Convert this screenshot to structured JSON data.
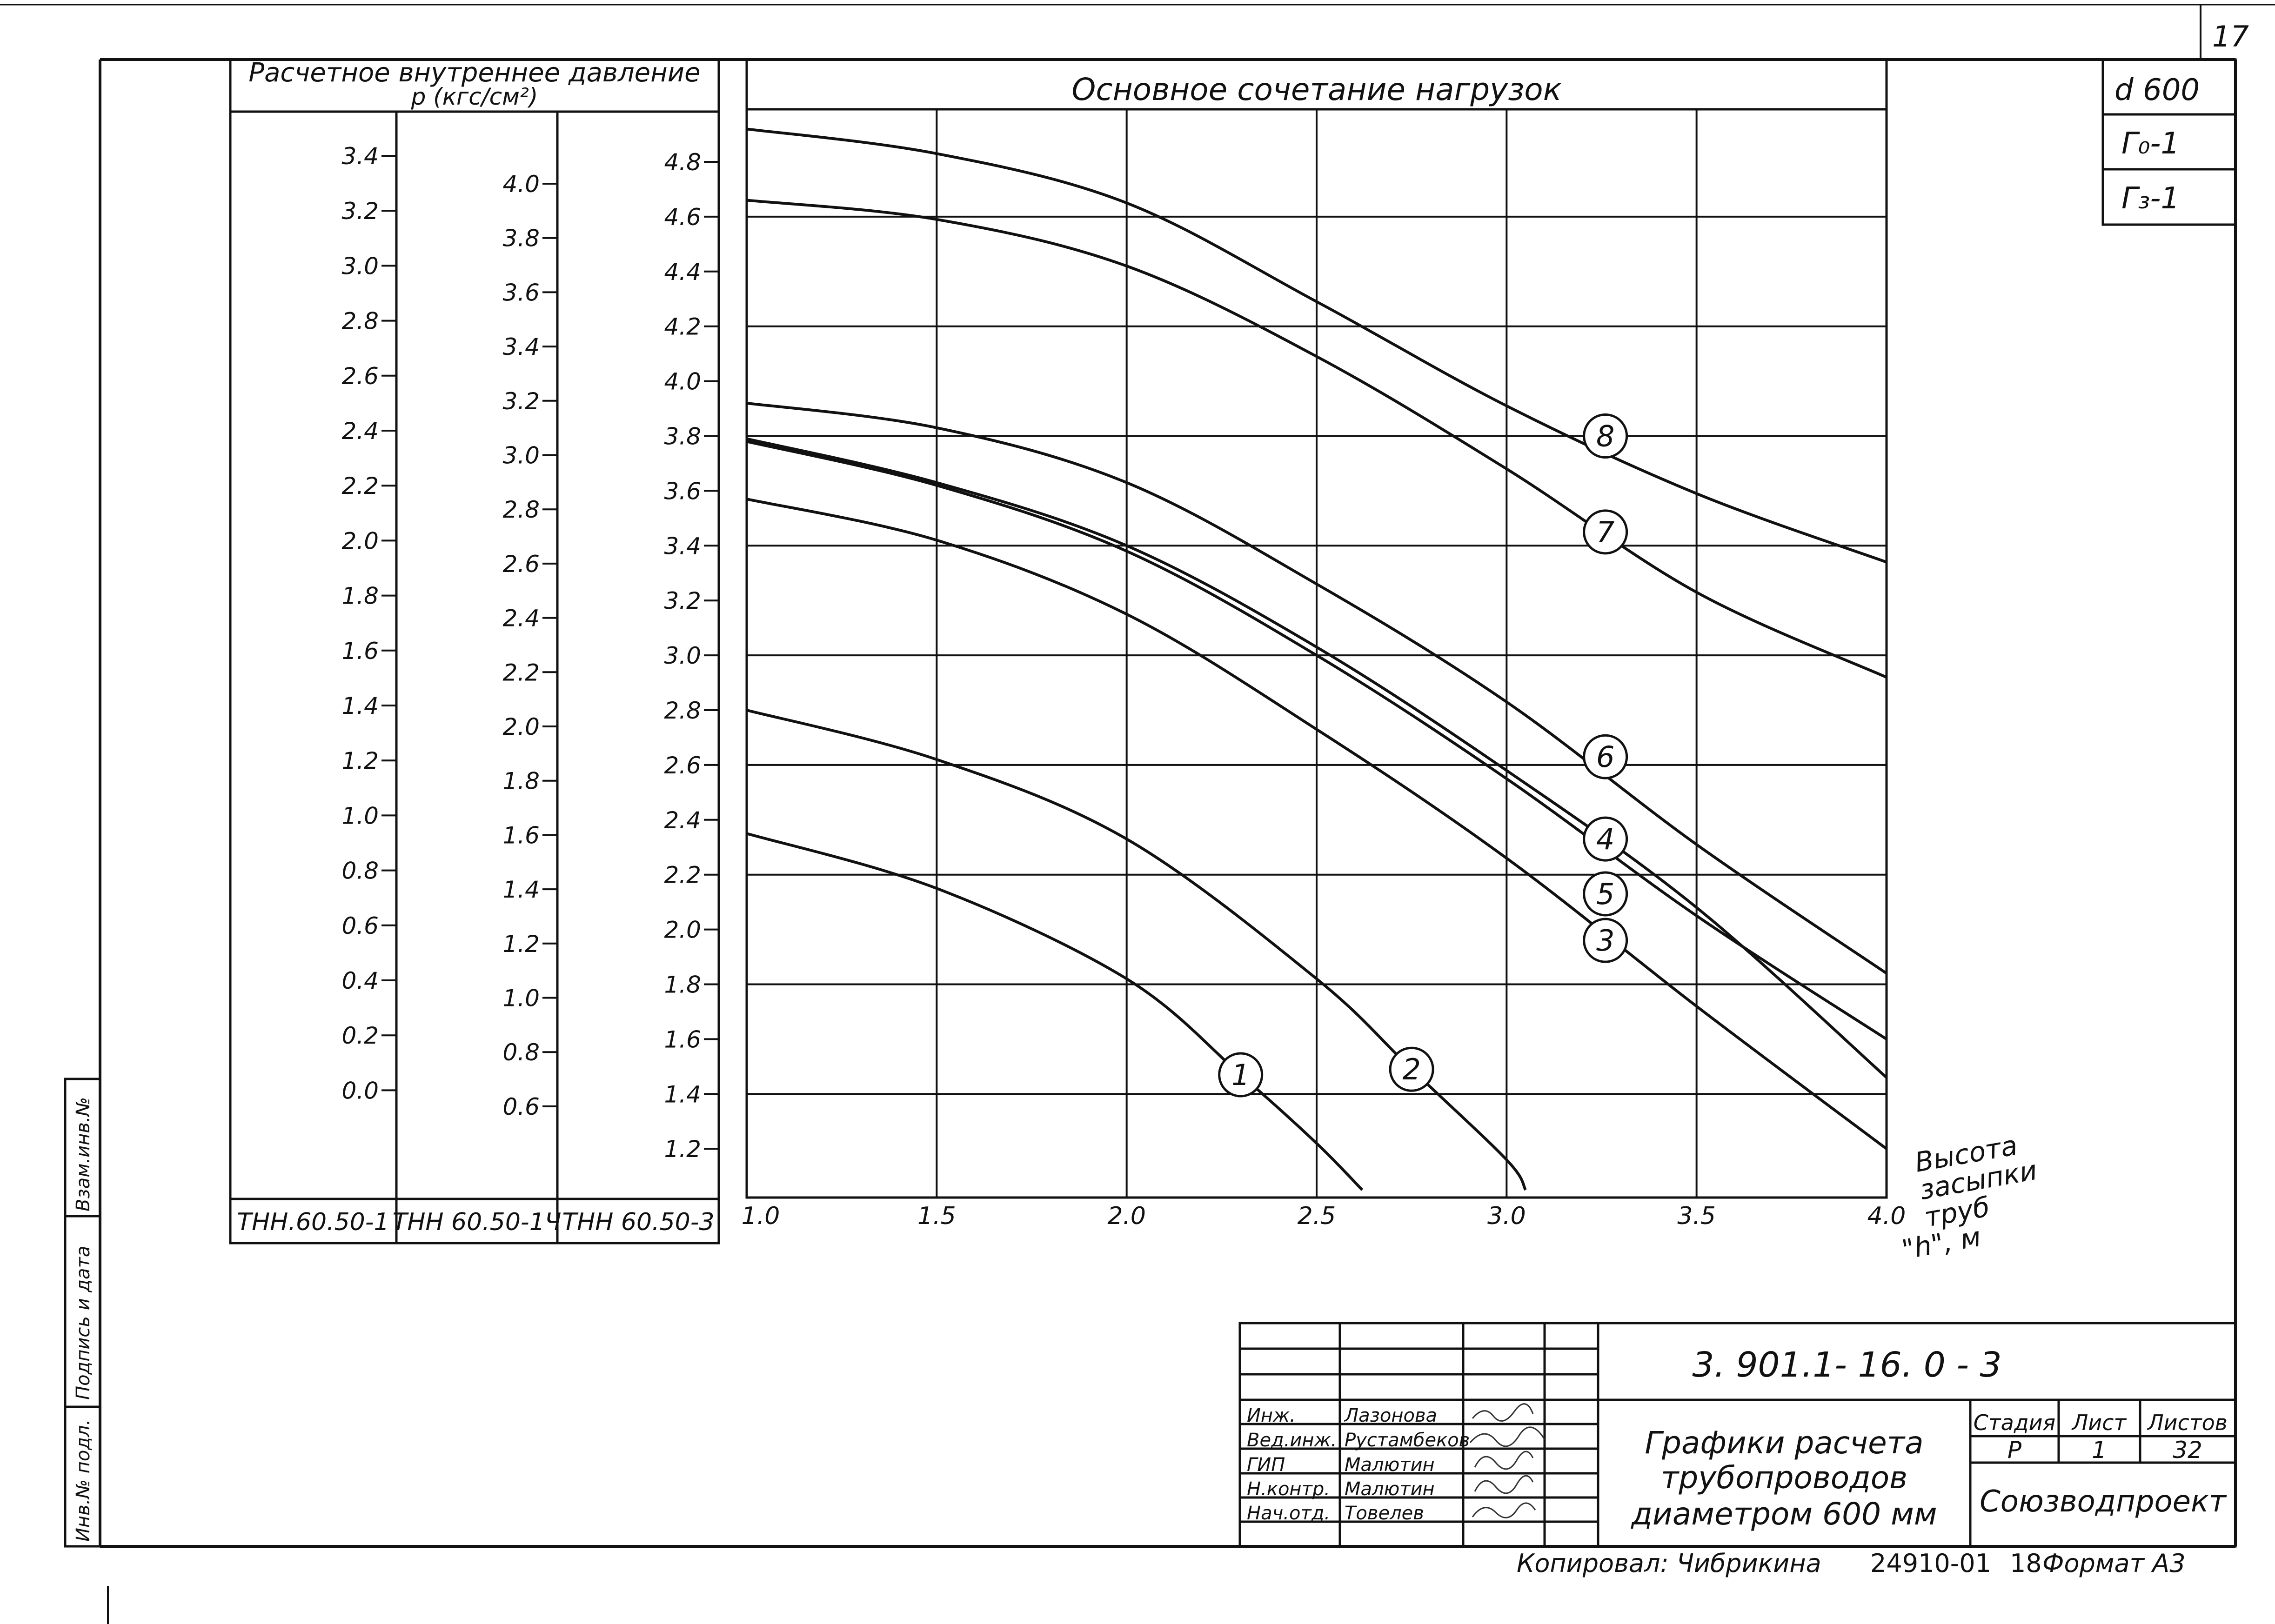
{
  "sheet": {
    "page_number": "17",
    "tags": [
      "d 600",
      "Г₀-1",
      "Г₃-1"
    ]
  },
  "scales": {
    "header_line1": "Расчетное внутреннее давление",
    "header_line2": "р (кгс/см²)",
    "columns": [
      {
        "footer": "ТНН.60.50-1",
        "ticks": [
          "3.4",
          "3.2",
          "3.0",
          "2.8",
          "2.6",
          "2.4",
          "2.2",
          "2.0",
          "1.8",
          "1.6",
          "1.4",
          "1.2",
          "1.0",
          "0.8",
          "0.6",
          "0.4",
          "0.2",
          "0.0"
        ],
        "values": [
          3.4,
          3.2,
          3.0,
          2.8,
          2.6,
          2.4,
          2.2,
          2.0,
          1.8,
          1.6,
          1.4,
          1.2,
          1.0,
          0.8,
          0.6,
          0.4,
          0.2,
          0.0
        ]
      },
      {
        "footer": "ТНН 60.50-1Ч",
        "ticks": [
          "4.0",
          "3.8",
          "3.6",
          "3.4",
          "3.2",
          "3.0",
          "2.8",
          "2.6",
          "2.4",
          "2.2",
          "2.0",
          "1.8",
          "1.6",
          "1.4",
          "1.2",
          "1.0",
          "0.8",
          "0.6"
        ],
        "values": [
          4.0,
          3.8,
          3.6,
          3.4,
          3.2,
          3.0,
          2.8,
          2.6,
          2.4,
          2.2,
          2.0,
          1.8,
          1.6,
          1.4,
          1.2,
          1.0,
          0.8,
          0.6
        ]
      },
      {
        "footer": "ТНН 60.50-3",
        "ticks": [
          "4.8",
          "4.6",
          "4.4",
          "4.2",
          "4.0",
          "3.8",
          "3.6",
          "3.4",
          "3.2",
          "3.0",
          "2.8",
          "2.6",
          "2.4",
          "2.2",
          "2.0",
          "1.8",
          "1.6",
          "1.4",
          "1.2"
        ],
        "values": [
          4.8,
          4.6,
          4.4,
          4.2,
          4.0,
          3.8,
          3.6,
          3.4,
          3.2,
          3.0,
          2.8,
          2.6,
          2.4,
          2.2,
          2.0,
          1.8,
          1.6,
          1.4,
          1.2
        ]
      }
    ]
  },
  "chart_data": {
    "type": "line",
    "title": "Основное сочетание нагрузок",
    "xlabel": "Высота засыпки труб \"h\", м",
    "ylabel": "",
    "x_ticks": [
      "1.0",
      "1.5",
      "2.0",
      "2.5",
      "3.0",
      "3.5",
      "4.0"
    ],
    "xlim": [
      1.0,
      4.0
    ],
    "ylim": [
      1.1,
      4.95
    ],
    "y_reference_scale": "ТНН 60.50-3",
    "grid": true,
    "legend": "numbered circle labels on curves",
    "series": [
      {
        "name": "1",
        "x": [
          1.0,
          1.5,
          2.0,
          2.3,
          2.5,
          2.62
        ],
        "y": [
          2.35,
          2.15,
          1.82,
          1.47,
          1.22,
          1.05
        ]
      },
      {
        "name": "2",
        "x": [
          1.0,
          1.5,
          2.0,
          2.5,
          2.75,
          3.0,
          3.05
        ],
        "y": [
          2.8,
          2.62,
          2.33,
          1.82,
          1.49,
          1.16,
          1.05
        ]
      },
      {
        "name": "3",
        "x": [
          1.0,
          1.5,
          2.0,
          2.5,
          3.0,
          3.5,
          4.0
        ],
        "y": [
          3.57,
          3.42,
          3.15,
          2.73,
          2.26,
          1.72,
          1.2
        ]
      },
      {
        "name": "4",
        "x": [
          1.0,
          1.5,
          2.0,
          2.5,
          3.0,
          3.5,
          4.0
        ],
        "y": [
          3.78,
          3.62,
          3.38,
          3.0,
          2.55,
          2.05,
          1.6
        ]
      },
      {
        "name": "5",
        "x": [
          1.0,
          1.5,
          2.0,
          2.5,
          3.0,
          3.5,
          4.0
        ],
        "y": [
          3.79,
          3.63,
          3.4,
          3.03,
          2.58,
          2.08,
          1.46
        ]
      },
      {
        "name": "6",
        "x": [
          1.0,
          1.5,
          2.0,
          2.5,
          3.0,
          3.5,
          4.0
        ],
        "y": [
          3.92,
          3.83,
          3.63,
          3.26,
          2.83,
          2.31,
          1.84
        ]
      },
      {
        "name": "7",
        "x": [
          1.0,
          1.5,
          2.0,
          2.5,
          3.0,
          3.5,
          4.0
        ],
        "y": [
          4.66,
          4.59,
          4.42,
          4.09,
          3.68,
          3.23,
          2.92
        ]
      },
      {
        "name": "8",
        "x": [
          1.0,
          1.5,
          2.0,
          2.5,
          3.0,
          3.5,
          4.0
        ],
        "y": [
          4.92,
          4.83,
          4.65,
          4.29,
          3.91,
          3.59,
          3.34
        ]
      }
    ],
    "labels": [
      {
        "text": "1",
        "x": 2.3,
        "y": 1.47
      },
      {
        "text": "2",
        "x": 2.75,
        "y": 1.49
      },
      {
        "text": "3",
        "x": 3.26,
        "y": 1.96
      },
      {
        "text": "4",
        "x": 3.26,
        "y": 2.33
      },
      {
        "text": "5",
        "x": 3.26,
        "y": 2.13
      },
      {
        "text": "6",
        "x": 3.26,
        "y": 2.63
      },
      {
        "text": "7",
        "x": 3.26,
        "y": 3.45
      },
      {
        "text": "8",
        "x": 3.26,
        "y": 3.8
      }
    ]
  },
  "title_block": {
    "doc_code": "3. 901.1- 16. 0 - 3",
    "doc_title_lines": [
      "Графики расчета",
      "трубопроводов",
      "диаметром 600 мм"
    ],
    "stage_header": "Стадия",
    "sheet_header": "Лист",
    "sheets_header": "Листов",
    "stage": "Р",
    "sheet": "1",
    "sheets": "32",
    "organization": "Союзводпроект",
    "roles": [
      {
        "role": "Инж.",
        "name": "Лазонова"
      },
      {
        "role": "Вед.инж.",
        "name": "Рустамбеков"
      },
      {
        "role": "ГИП",
        "name": "Малютин"
      },
      {
        "role": "Н.контр.",
        "name": "Малютин"
      },
      {
        "role": "Нач.отд.",
        "name": "Товелев"
      }
    ]
  },
  "side_stamp": {
    "labels": [
      "Инв.№ подл.",
      "Подпись и дата",
      "Взам.инв.№"
    ]
  },
  "footer": {
    "copied_by": "Копировал: Чибрикина",
    "order_no": "24910-01",
    "number": "18",
    "format": "Формат А3"
  }
}
